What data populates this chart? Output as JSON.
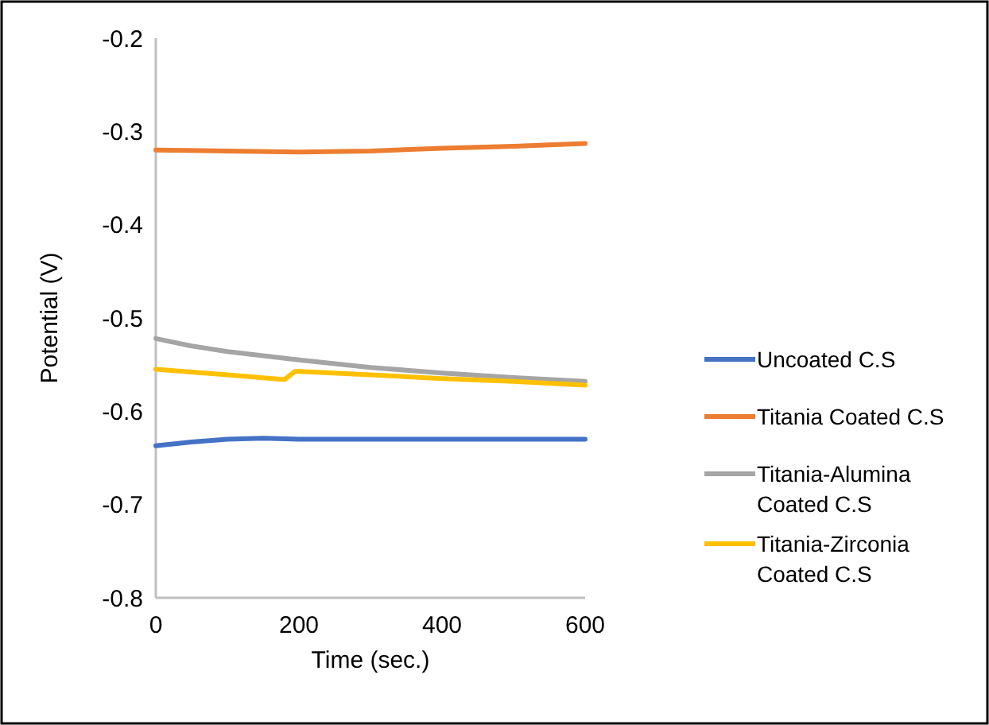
{
  "chart_data": {
    "type": "line",
    "xlabel": "Time (sec.)",
    "ylabel": "Potential (V)",
    "xlim": [
      0,
      600
    ],
    "xticks": [
      0,
      200,
      400,
      600
    ],
    "ylim": [
      -0.8,
      -0.2
    ],
    "yticks": [
      -0.8,
      -0.7,
      -0.6,
      -0.5,
      -0.4,
      -0.3,
      -0.2
    ],
    "grid": false,
    "legend": "right",
    "marker": "none",
    "line_style": "solid",
    "series": [
      {
        "name": "Uncoated C.S",
        "color": "#4472c4",
        "x": [
          0,
          50,
          100,
          150,
          200,
          300,
          400,
          500,
          600
        ],
        "values": [
          -0.637,
          -0.633,
          -0.63,
          -0.629,
          -0.63,
          -0.63,
          -0.63,
          -0.63,
          -0.63
        ]
      },
      {
        "name": "Titania Coated C.S",
        "color": "#ed7d31",
        "x": [
          0,
          100,
          200,
          300,
          400,
          500,
          600
        ],
        "values": [
          -0.32,
          -0.321,
          -0.322,
          -0.321,
          -0.318,
          -0.316,
          -0.313
        ]
      },
      {
        "name": "Titania-Alumina Coated C.S",
        "color": "#a5a5a5",
        "x": [
          0,
          50,
          100,
          200,
          300,
          400,
          500,
          600
        ],
        "values": [
          -0.522,
          -0.53,
          -0.536,
          -0.545,
          -0.553,
          -0.559,
          -0.564,
          -0.568
        ]
      },
      {
        "name": "Titania-Zirconia Coated C.S",
        "color": "#ffc000",
        "x": [
          0,
          100,
          180,
          195,
          300,
          400,
          500,
          600
        ],
        "values": [
          -0.555,
          -0.561,
          -0.566,
          -0.557,
          -0.561,
          -0.565,
          -0.568,
          -0.572
        ]
      }
    ]
  }
}
